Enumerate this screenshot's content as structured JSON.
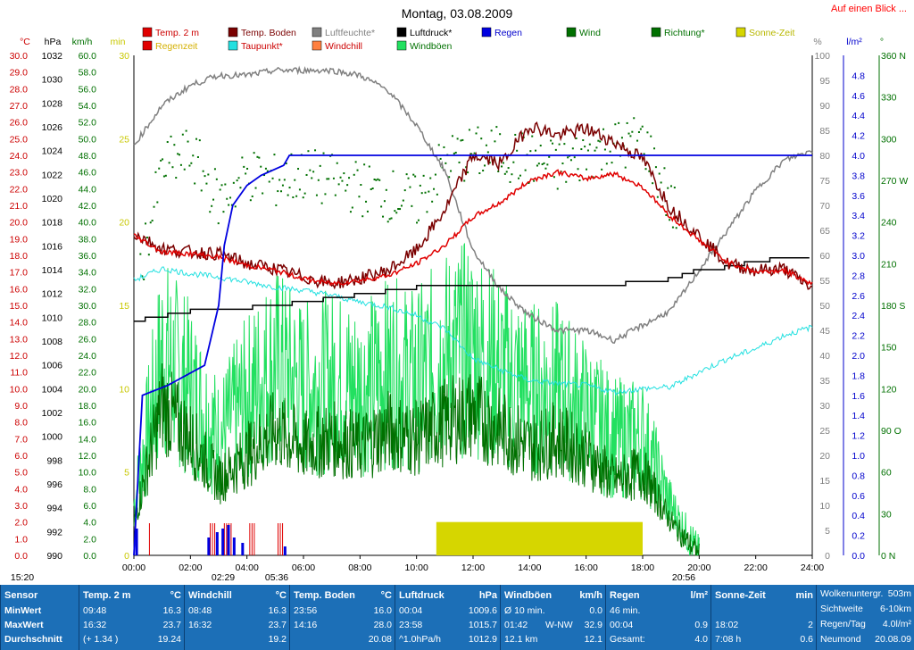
{
  "title": "Montag, 03.08.2009",
  "corner_link": "Auf einen Blick ...",
  "legend": [
    {
      "name": "Temp. 2 m",
      "color": "#e00000",
      "text_color": "#cc0000"
    },
    {
      "name": "Temp. Boden",
      "color": "#7a0000",
      "text_color": "#7a0000"
    },
    {
      "name": "Luftfeuchte*",
      "color": "#808080",
      "text_color": "#808080"
    },
    {
      "name": "Luftdruck*",
      "color": "#000000",
      "text_color": "#000000"
    },
    {
      "name": "Regen",
      "color": "#0000e0",
      "text_color": "#0000cc"
    },
    {
      "name": "Wind",
      "color": "#007000",
      "text_color": "#007000"
    },
    {
      "name": "Richtung*",
      "color": "#007000",
      "text_color": "#007000"
    },
    {
      "name": "Sonne-Zeit",
      "color": "#d6d600",
      "text_color": "#b8b800"
    },
    {
      "name": "Regenzeit",
      "color": "#e00000",
      "text_color": "#d4b000"
    },
    {
      "name": "Taupunkt*",
      "color": "#22e0e0",
      "text_color": "#cc0000"
    },
    {
      "name": "Windchill",
      "color": "#ff8040",
      "text_color": "#cc0000"
    },
    {
      "name": "Windböen",
      "color": "#22e060",
      "text_color": "#007000"
    }
  ],
  "axes": {
    "units": {
      "temp": "°C",
      "press": "hPa",
      "wind": "km/h",
      "min": "min",
      "hum": "%",
      "rain": "l/m²",
      "dir": "°"
    },
    "temp_ticks": [
      "30.0",
      "29.0",
      "28.0",
      "27.0",
      "26.0",
      "25.0",
      "24.0",
      "23.0",
      "22.0",
      "21.0",
      "20.0",
      "19.0",
      "18.0",
      "17.0",
      "16.0",
      "15.0",
      "14.0",
      "13.0",
      "12.0",
      "11.0",
      "10.0",
      "9.0",
      "8.0",
      "7.0",
      "6.0",
      "5.0",
      "4.0",
      "3.0",
      "2.0",
      "1.0",
      "0.0"
    ],
    "press_ticks": [
      "1032",
      "1030",
      "1028",
      "1026",
      "1024",
      "1022",
      "1020",
      "1018",
      "1016",
      "1014",
      "1012",
      "1010",
      "1008",
      "1006",
      "1004",
      "1002",
      "1000",
      "998",
      "996",
      "994",
      "992",
      "990"
    ],
    "wind_ticks": [
      "60.0",
      "58.0",
      "56.0",
      "54.0",
      "52.0",
      "50.0",
      "48.0",
      "46.0",
      "44.0",
      "42.0",
      "40.0",
      "38.0",
      "36.0",
      "34.0",
      "32.0",
      "30.0",
      "28.0",
      "26.0",
      "24.0",
      "22.0",
      "20.0",
      "18.0",
      "16.0",
      "14.0",
      "12.0",
      "10.0",
      "8.0",
      "6.0",
      "4.0",
      "2.0",
      "0.0"
    ],
    "min_ticks": [
      "30",
      "25",
      "20",
      "15",
      "10",
      "5",
      "0"
    ],
    "hum_ticks": [
      "100",
      "95",
      "90",
      "85",
      "80",
      "75",
      "70",
      "65",
      "60",
      "55",
      "50",
      "45",
      "40",
      "35",
      "30",
      "25",
      "20",
      "15",
      "10",
      "5",
      "0"
    ],
    "rain_ticks": [
      "4.8",
      "4.6",
      "4.4",
      "4.2",
      "4.0",
      "3.8",
      "3.6",
      "3.4",
      "3.2",
      "3.0",
      "2.8",
      "2.6",
      "2.4",
      "2.2",
      "2.0",
      "1.8",
      "1.6",
      "1.4",
      "1.2",
      "1.0",
      "0.8",
      "0.6",
      "0.4",
      "0.2",
      "0.0"
    ],
    "dir_ticks": [
      "360 N",
      "330",
      "300",
      "270 W",
      "240",
      "210",
      "180 S",
      "150",
      "120",
      "90 O",
      "60",
      "30",
      "0 N"
    ],
    "time_ticks": [
      "00:00",
      "02:00",
      "04:00",
      "06:00",
      "08:00",
      "10:00",
      "12:00",
      "14:00",
      "16:00",
      "18:00",
      "20:00",
      "22:00",
      "24:00"
    ],
    "sun_markers": [
      "15:20",
      "02:29",
      "05:36",
      "20:56"
    ]
  },
  "chart_data": {
    "type": "line",
    "title": "Montag, 03.08.2009",
    "x_range": [
      "00:00",
      "24:00"
    ],
    "series": [
      {
        "name": "Temp. 2 m",
        "unit": "°C",
        "x": [
          0,
          1,
          2,
          3,
          4,
          5,
          6,
          7,
          8,
          9,
          10,
          11,
          12,
          13,
          14,
          15,
          16,
          17,
          18,
          19,
          20,
          21,
          22,
          23,
          24
        ],
        "values": [
          19.2,
          18.2,
          18.1,
          17.9,
          17.4,
          17.1,
          16.6,
          16.3,
          16.5,
          16.8,
          17.5,
          18.6,
          20.3,
          21.2,
          22.5,
          23.0,
          22.6,
          22.9,
          22.1,
          20.3,
          18.9,
          17.6,
          17.0,
          17.1,
          16.3
        ]
      },
      {
        "name": "Temp. Boden",
        "unit": "°C",
        "x": [
          0,
          1,
          2,
          3,
          4,
          5,
          6,
          7,
          8,
          9,
          10,
          11,
          12,
          13,
          14,
          15,
          16,
          17,
          18,
          19,
          20,
          21,
          22,
          23,
          24
        ],
        "values": [
          19.3,
          18.4,
          18.2,
          18.1,
          17.5,
          17.2,
          16.7,
          16.3,
          16.6,
          17.1,
          18.3,
          20.7,
          24.0,
          23.5,
          25.8,
          25.2,
          25.6,
          24.8,
          23.8,
          20.8,
          19.2,
          17.5,
          17.1,
          17.2,
          16.0
        ]
      },
      {
        "name": "Luftfeuchte*",
        "unit": "%",
        "x": [
          0,
          1,
          2,
          3,
          4,
          5,
          6,
          7,
          8,
          9,
          10,
          11,
          12,
          13,
          14,
          15,
          16,
          17,
          18,
          19,
          20,
          21,
          22,
          23,
          24
        ],
        "values": [
          82,
          90,
          94,
          96,
          96,
          97,
          97,
          97,
          96,
          93,
          86,
          77,
          61,
          53,
          48,
          45,
          45,
          43,
          46,
          49,
          57,
          65,
          73,
          79,
          81
        ]
      },
      {
        "name": "Luftdruck*",
        "unit": "hPa",
        "x": [
          0,
          1,
          2,
          3,
          4,
          5,
          6,
          7,
          8,
          9,
          10,
          11,
          12,
          13,
          14,
          15,
          16,
          17,
          18,
          19,
          20,
          21,
          22,
          23,
          24
        ],
        "values": [
          1009.7,
          1010.1,
          1010.5,
          1010.6,
          1010.8,
          1011.0,
          1011.3,
          1011.6,
          1011.9,
          1012.2,
          1012.5,
          1012.7,
          1012.7,
          1012.7,
          1012.8,
          1012.8,
          1012.8,
          1012.8,
          1012.9,
          1013.2,
          1014.0,
          1014.2,
          1014.7,
          1015.0,
          1015.0
        ]
      },
      {
        "name": "Regen",
        "unit": "l/m²",
        "x": [
          0,
          0.3,
          1.2,
          2.5,
          3,
          3.2,
          3.5,
          4,
          4.5,
          5.3,
          5.5,
          24
        ],
        "values": [
          0,
          1.6,
          1.7,
          1.9,
          2.5,
          3.1,
          3.5,
          3.7,
          3.8,
          3.9,
          4.0,
          4.0
        ]
      },
      {
        "name": "Taupunkt*",
        "unit": "°C",
        "x": [
          0,
          1,
          2,
          3,
          4,
          5,
          6,
          7,
          8,
          9,
          10,
          11,
          12,
          13,
          14,
          15,
          16,
          17,
          18,
          19,
          20,
          21,
          22,
          23,
          24
        ],
        "values": [
          16.5,
          17.2,
          16.9,
          16.7,
          16.4,
          16.1,
          15.9,
          15.6,
          15.2,
          14.9,
          14.4,
          13.6,
          11.8,
          11.1,
          10.5,
          10.3,
          10.2,
          9.8,
          10.0,
          10.1,
          11.0,
          11.8,
          12.4,
          13.2,
          13.7
        ]
      },
      {
        "name": "Wind",
        "unit": "km/h",
        "x": [
          0,
          1,
          2,
          3,
          4,
          5,
          6,
          7,
          8,
          9,
          10,
          11,
          12,
          13,
          14,
          15,
          16,
          17,
          18,
          19,
          20
        ],
        "values": [
          4,
          18,
          14,
          9,
          12,
          15,
          13,
          14,
          13,
          15,
          14,
          16,
          17,
          15,
          13,
          14,
          12,
          9,
          10,
          4,
          0
        ]
      },
      {
        "name": "Windböen",
        "unit": "km/h",
        "x": [
          0,
          1,
          2,
          3,
          4,
          5,
          6,
          7,
          8,
          9,
          10,
          11,
          12,
          13,
          14,
          15,
          16,
          17,
          18,
          19,
          20
        ],
        "values": [
          6,
          24,
          20,
          14,
          19,
          23,
          20,
          21,
          20,
          22,
          21,
          24,
          25,
          22,
          20,
          20,
          17,
          14,
          14,
          6,
          0
        ]
      },
      {
        "name": "Richtung*",
        "unit": "°",
        "x": [
          0,
          1,
          2,
          3,
          4,
          5,
          6,
          7,
          8,
          9,
          10,
          11,
          12,
          13,
          14,
          15,
          16,
          17,
          18,
          19
        ],
        "values": [
          190,
          280,
          290,
          255,
          275,
          270,
          275,
          270,
          265,
          260,
          255,
          285,
          290,
          290,
          285,
          280,
          290,
          295,
          300,
          250
        ]
      },
      {
        "name": "Sonne-Zeit",
        "unit": "min",
        "x": [
          10.7,
          18.0
        ],
        "values": [
          2,
          2
        ]
      }
    ],
    "ylim_temp": [
      0,
      30
    ],
    "ylim_press": [
      990,
      1032
    ],
    "ylim_wind": [
      0,
      60
    ],
    "ylim_hum": [
      0,
      100
    ],
    "ylim_rain": [
      0,
      4.8
    ],
    "ylim_dir": [
      0,
      360
    ],
    "grid": false
  },
  "stats": {
    "sensor": {
      "header": "Sensor",
      "rows": [
        "MinWert",
        "MaxWert",
        "Durchschnitt"
      ]
    },
    "temp2m": {
      "header": "Temp. 2 m",
      "unit": "°C",
      "rows": [
        [
          "09:48",
          "16.3"
        ],
        [
          "16:32",
          "23.7"
        ],
        [
          "(+ 1.34 )",
          "19.24"
        ]
      ]
    },
    "windchill": {
      "header": "Windchill",
      "unit": "°C",
      "rows": [
        [
          "08:48",
          "16.3"
        ],
        [
          "16:32",
          "23.7"
        ],
        [
          "",
          "19.2"
        ]
      ]
    },
    "tempboden": {
      "header": "Temp. Boden",
      "unit": "°C",
      "rows": [
        [
          "23:56",
          "16.0"
        ],
        [
          "14:16",
          "28.0"
        ],
        [
          "",
          "20.08"
        ]
      ]
    },
    "luftdruck": {
      "header": "Luftdruck",
      "unit": "hPa",
      "rows": [
        [
          "00:04",
          "1009.6"
        ],
        [
          "23:58",
          "1015.7"
        ],
        [
          "^1.0hPa/h",
          "1012.9"
        ]
      ]
    },
    "windboeen": {
      "header": "Windböen",
      "unit": "km/h",
      "rows": [
        [
          "Ø 10 min.",
          "",
          "0.0"
        ],
        [
          "01:42",
          "W-NW",
          "32.9"
        ],
        [
          "12.1 km",
          "",
          "12.1"
        ]
      ]
    },
    "regen": {
      "header": "Regen",
      "unit": "l/m²",
      "rows": [
        [
          "46 min.",
          ""
        ],
        [
          "00:04",
          "0.9"
        ],
        [
          "Gesamt:",
          "4.0"
        ]
      ]
    },
    "sonne": {
      "header": "Sonne-Zeit",
      "unit": "min",
      "rows": [
        [
          "",
          ""
        ],
        [
          "18:02",
          "2"
        ],
        [
          "7:08 h",
          "0.6"
        ]
      ]
    },
    "extra": {
      "rows": [
        [
          "Wolkenuntergr.",
          "503m"
        ],
        [
          "Sichtweite",
          "6-10km"
        ],
        [
          "Regen/Tag",
          "4.0l/m²"
        ],
        [
          "Neumond",
          "20.08.09"
        ]
      ]
    }
  }
}
